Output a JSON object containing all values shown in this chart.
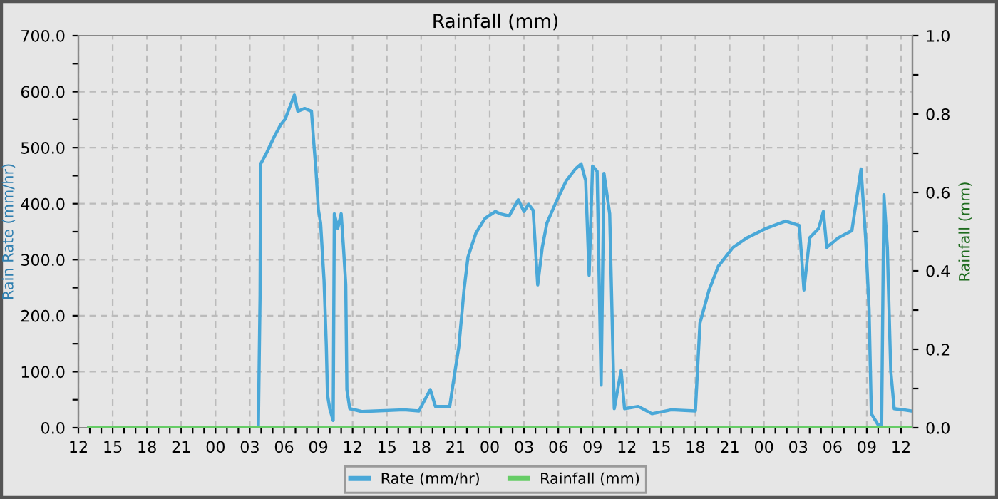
{
  "chart_data": {
    "type": "line",
    "title": "Rainfall (mm)",
    "ylabel": "Rain Rate (mm/hr)",
    "y2label": "Rainfall (mm)",
    "xlim": [
      12,
      85
    ],
    "ylim": [
      0,
      700
    ],
    "y2lim": [
      0,
      1.0
    ],
    "xticks": [
      {
        "value": 12,
        "label": "12"
      },
      {
        "value": 13,
        "label": null
      },
      {
        "value": 14,
        "label": null
      },
      {
        "value": 15,
        "label": "15"
      },
      {
        "value": 16,
        "label": null
      },
      {
        "value": 17,
        "label": null
      },
      {
        "value": 18,
        "label": "18"
      },
      {
        "value": 19,
        "label": null
      },
      {
        "value": 20,
        "label": null
      },
      {
        "value": 21,
        "label": "21"
      },
      {
        "value": 22,
        "label": null
      },
      {
        "value": 23,
        "label": null
      },
      {
        "value": 24,
        "label": "00"
      },
      {
        "value": 25,
        "label": null
      },
      {
        "value": 26,
        "label": null
      },
      {
        "value": 27,
        "label": "03"
      },
      {
        "value": 28,
        "label": null
      },
      {
        "value": 29,
        "label": null
      },
      {
        "value": 30,
        "label": "06"
      },
      {
        "value": 31,
        "label": null
      },
      {
        "value": 32,
        "label": null
      },
      {
        "value": 33,
        "label": "09"
      },
      {
        "value": 34,
        "label": null
      },
      {
        "value": 35,
        "label": null
      },
      {
        "value": 36,
        "label": "12"
      },
      {
        "value": 37,
        "label": null
      },
      {
        "value": 38,
        "label": null
      },
      {
        "value": 39,
        "label": "15"
      },
      {
        "value": 40,
        "label": null
      },
      {
        "value": 41,
        "label": null
      },
      {
        "value": 42,
        "label": "18"
      },
      {
        "value": 43,
        "label": null
      },
      {
        "value": 44,
        "label": null
      },
      {
        "value": 45,
        "label": "21"
      },
      {
        "value": 46,
        "label": null
      },
      {
        "value": 47,
        "label": null
      },
      {
        "value": 48,
        "label": "00"
      },
      {
        "value": 49,
        "label": null
      },
      {
        "value": 50,
        "label": null
      },
      {
        "value": 51,
        "label": "03"
      },
      {
        "value": 52,
        "label": null
      },
      {
        "value": 53,
        "label": null
      },
      {
        "value": 54,
        "label": "06"
      },
      {
        "value": 55,
        "label": null
      },
      {
        "value": 56,
        "label": null
      },
      {
        "value": 57,
        "label": "09"
      },
      {
        "value": 58,
        "label": null
      },
      {
        "value": 59,
        "label": null
      },
      {
        "value": 60,
        "label": "12"
      },
      {
        "value": 61,
        "label": null
      },
      {
        "value": 62,
        "label": null
      },
      {
        "value": 63,
        "label": "15"
      },
      {
        "value": 64,
        "label": null
      },
      {
        "value": 65,
        "label": null
      },
      {
        "value": 66,
        "label": "18"
      },
      {
        "value": 67,
        "label": null
      },
      {
        "value": 68,
        "label": null
      },
      {
        "value": 69,
        "label": "21"
      },
      {
        "value": 70,
        "label": null
      },
      {
        "value": 71,
        "label": null
      },
      {
        "value": 72,
        "label": "00"
      },
      {
        "value": 73,
        "label": null
      },
      {
        "value": 74,
        "label": null
      },
      {
        "value": 75,
        "label": "03"
      },
      {
        "value": 76,
        "label": null
      },
      {
        "value": 77,
        "label": null
      },
      {
        "value": 78,
        "label": "06"
      },
      {
        "value": 79,
        "label": null
      },
      {
        "value": 80,
        "label": null
      },
      {
        "value": 81,
        "label": "09"
      },
      {
        "value": 82,
        "label": null
      },
      {
        "value": 83,
        "label": null
      },
      {
        "value": 84,
        "label": "12"
      }
    ],
    "yticks": [
      {
        "value": 0,
        "label": "0.0"
      },
      {
        "value": 50,
        "label": null
      },
      {
        "value": 100,
        "label": "100.0"
      },
      {
        "value": 150,
        "label": null
      },
      {
        "value": 200,
        "label": "200.0"
      },
      {
        "value": 250,
        "label": null
      },
      {
        "value": 300,
        "label": "300.0"
      },
      {
        "value": 350,
        "label": null
      },
      {
        "value": 400,
        "label": "400.0"
      },
      {
        "value": 450,
        "label": null
      },
      {
        "value": 500,
        "label": "500.0"
      },
      {
        "value": 550,
        "label": null
      },
      {
        "value": 600,
        "label": "600.0"
      },
      {
        "value": 650,
        "label": null
      },
      {
        "value": 700,
        "label": "700.0"
      }
    ],
    "y2ticks": [
      {
        "value": 0,
        "label": "0.0"
      },
      {
        "value": 0.1,
        "label": null
      },
      0.2,
      {
        "value": 0.3,
        "label": null
      },
      0.4,
      {
        "value": 0.5,
        "label": null
      },
      0.6,
      {
        "value": 0.7,
        "label": null
      },
      0.8,
      {
        "value": 0.9,
        "label": null
      },
      {
        "value": 1,
        "label": "1.0"
      }
    ],
    "grid": true,
    "legend": "bottom",
    "line_style": "solid",
    "marker": "none",
    "series": [
      {
        "name": "Rate (mm/hr)",
        "color": "#4aa8d8",
        "axis": "y",
        "x": [
          12.9,
          27.75,
          27.9,
          27.95,
          28.5,
          29.1,
          29.7,
          30.1,
          30.9,
          31.2,
          31.8,
          32.4,
          32.6,
          32.8,
          33.0,
          33.2,
          33.5,
          33.7,
          33.8,
          34.0,
          34.3,
          34.4,
          34.7,
          35.0,
          35.2,
          35.4,
          35.5,
          35.75,
          36.8,
          38.0,
          40.5,
          41.8,
          42.8,
          43.25,
          44.5,
          44.9,
          45.3,
          45.75,
          46.1,
          46.8,
          47.6,
          48.5,
          48.9,
          49.7,
          50.5,
          51.0,
          51.4,
          51.8,
          52.2,
          52.6,
          53.0,
          53.9,
          54.7,
          55.5,
          56.0,
          56.4,
          56.7,
          57.0,
          57.4,
          57.75,
          58.0,
          58.5,
          58.9,
          59.5,
          59.8,
          61.0,
          62.2,
          63.9,
          66.0,
          66.4,
          67.2,
          68.0,
          69.3,
          70.5,
          72.2,
          73.9,
          75.1,
          75.5,
          76.0,
          76.8,
          77.2,
          77.5,
          78.5,
          79.7,
          80.1,
          80.5,
          80.9,
          81.2,
          81.4,
          82.0,
          82.3,
          82.5,
          82.8,
          83.1,
          83.4,
          84.9
        ],
        "values": [
          0,
          0,
          237,
          471,
          492,
          518,
          541,
          551,
          594,
          565,
          570,
          565,
          509,
          458,
          390,
          365,
          263,
          145,
          59,
          34,
          13,
          382,
          356,
          382,
          322,
          255,
          68,
          34,
          29,
          30,
          32,
          30,
          68,
          38,
          38,
          93,
          145,
          246,
          305,
          348,
          374,
          386,
          382,
          378,
          407,
          386,
          399,
          388,
          255,
          322,
          365,
          407,
          441,
          462,
          471,
          441,
          272,
          467,
          458,
          76,
          454,
          382,
          34,
          102,
          34,
          38,
          25,
          32,
          30,
          187,
          246,
          288,
          322,
          339,
          356,
          369,
          361,
          246,
          339,
          356,
          386,
          322,
          339,
          352,
          407,
          462,
          339,
          212,
          25,
          5,
          5,
          416,
          322,
          102,
          34,
          30
        ]
      },
      {
        "name": "Rainfall (mm)",
        "color": "#66cc66",
        "axis": "y2",
        "x": [
          12.9,
          84.9
        ],
        "values": [
          0,
          0
        ]
      }
    ]
  }
}
